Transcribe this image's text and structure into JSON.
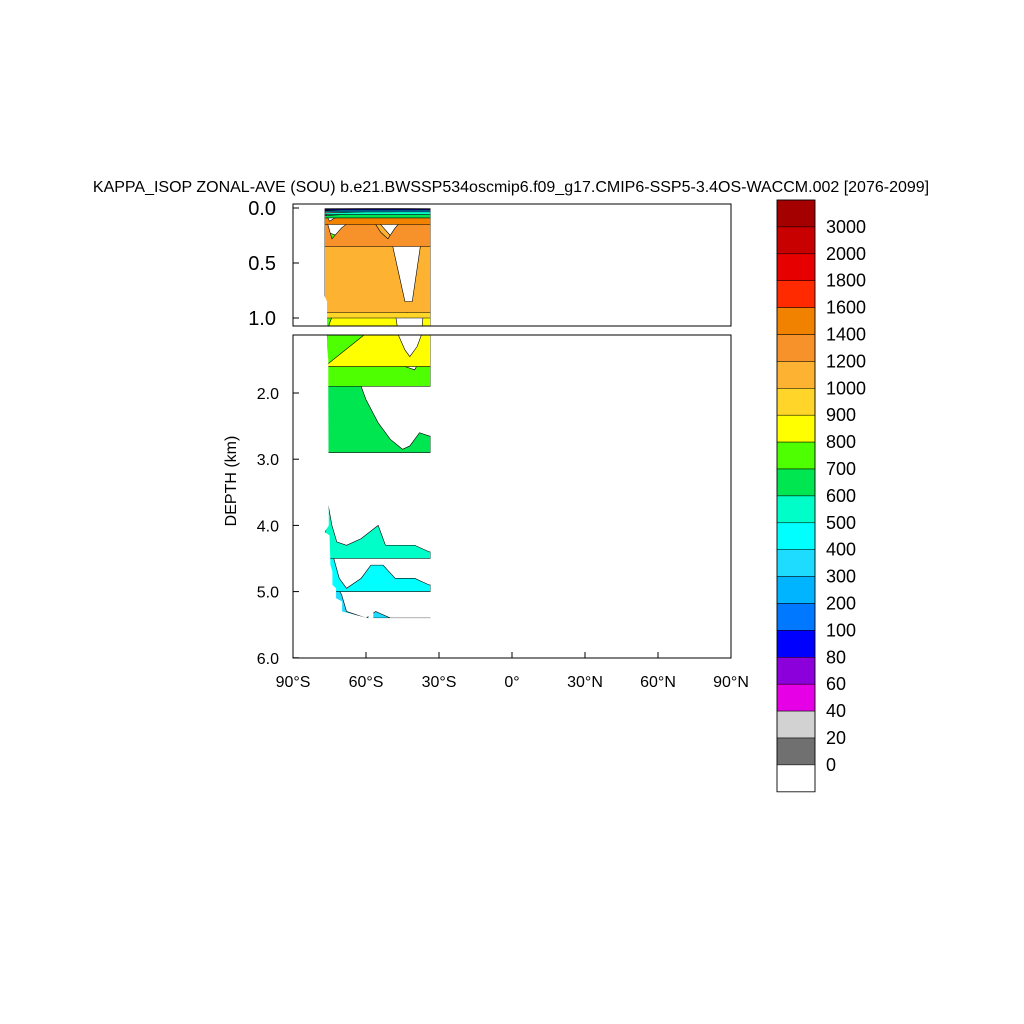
{
  "chart_data": {
    "type": "heatmap",
    "title": "KAPPA_ISOP ZONAL-AVE (SOU) b.e21.BWSSP534oscmip6.f09_g17.CMIP6-SSP5-3.4OS-WACCM.002 [2076-2099]",
    "ylabel": "DEPTH (km)",
    "xlabel": "",
    "xlim": [
      -90,
      90
    ],
    "ylim_upper_panel": [
      0.0,
      1.1
    ],
    "ylim_lower_panel": [
      1.1,
      6.0
    ],
    "xticks": [
      {
        "value": -90,
        "label": "90°S"
      },
      {
        "value": -60,
        "label": "60°S"
      },
      {
        "value": -30,
        "label": "30°S"
      },
      {
        "value": 0,
        "label": "0°"
      },
      {
        "value": 30,
        "label": "30°N"
      },
      {
        "value": 60,
        "label": "60°N"
      },
      {
        "value": 90,
        "label": "90°N"
      }
    ],
    "yticks_upper": [
      {
        "value": 0.0,
        "label": "0.0"
      },
      {
        "value": 0.5,
        "label": "0.5"
      },
      {
        "value": 1.0,
        "label": "1.0"
      }
    ],
    "yticks_lower": [
      {
        "value": 2.0,
        "label": "2.0"
      },
      {
        "value": 3.0,
        "label": "3.0"
      },
      {
        "value": 4.0,
        "label": "4.0"
      },
      {
        "value": 5.0,
        "label": "5.0"
      },
      {
        "value": 6.0,
        "label": "6.0"
      }
    ],
    "colorbar": {
      "labels": [
        "3000",
        "2000",
        "1800",
        "1600",
        "1400",
        "1200",
        "1000",
        "900",
        "800",
        "700",
        "600",
        "500",
        "400",
        "300",
        "200",
        "100",
        "80",
        "60",
        "40",
        "20",
        "0"
      ],
      "colors": [
        "#a50000",
        "#c80000",
        "#e60000",
        "#ff2a00",
        "#f08200",
        "#f7922b",
        "#fdb232",
        "#ffd52a",
        "#ffff00",
        "#4dff00",
        "#00e650",
        "#00ffc8",
        "#00ffff",
        "#1edcff",
        "#00b4ff",
        "#0078ff",
        "#0000ff",
        "#8c00dc",
        "#e600e6",
        "#d2d2d2",
        "#707070",
        "#ffffff"
      ]
    },
    "bands": [
      {
        "level": 400,
        "color": "#1edcff",
        "ub": 5.4,
        "profile": [
          [
            -77,
            4.1
          ],
          [
            -75,
            4.5
          ],
          [
            -73,
            4.85
          ],
          [
            -70,
            5.05
          ],
          [
            -68,
            5.3
          ],
          [
            -60,
            5.4
          ],
          [
            -56,
            5.3
          ],
          [
            -50,
            5.4
          ],
          [
            -34,
            5.4
          ]
        ]
      },
      {
        "level": 500,
        "color": "#00ffff",
        "ub": 5.0,
        "profile": [
          [
            -76,
            4.05
          ],
          [
            -74,
            4.4
          ],
          [
            -71,
            4.8
          ],
          [
            -68,
            4.95
          ],
          [
            -62,
            4.8
          ],
          [
            -58,
            4.6
          ],
          [
            -53,
            4.6
          ],
          [
            -48,
            4.8
          ],
          [
            -40,
            4.8
          ],
          [
            -34,
            4.9
          ]
        ]
      },
      {
        "level": 600,
        "color": "#00ffc8",
        "ub": 4.5,
        "profile": [
          [
            -76,
            3.6
          ],
          [
            -74,
            4.0
          ],
          [
            -72,
            4.25
          ],
          [
            -68,
            4.3
          ],
          [
            -62,
            4.2
          ],
          [
            -55,
            4.0
          ],
          [
            -52,
            4.3
          ],
          [
            -48,
            4.3
          ],
          [
            -40,
            4.3
          ],
          [
            -34,
            4.4
          ]
        ]
      },
      {
        "level": 700,
        "color": "#00e650",
        "ub": 2.9,
        "profile": [
          [
            -77,
            0.7
          ],
          [
            -76,
            0.8
          ],
          [
            -74,
            1.0
          ],
          [
            -71,
            1.0
          ],
          [
            -68,
            1.0
          ],
          [
            -66,
            1.4
          ],
          [
            -64,
            1.7
          ],
          [
            -60,
            2.1
          ],
          [
            -55,
            2.45
          ],
          [
            -50,
            2.7
          ],
          [
            -45,
            2.85
          ],
          [
            -42,
            2.8
          ],
          [
            -38,
            2.6
          ],
          [
            -34,
            2.65
          ]
        ]
      },
      {
        "level": 800,
        "color": "#4dff00",
        "ub": 1.9,
        "profile": [
          [
            -76,
            0.22
          ],
          [
            -72,
            0.25
          ],
          [
            -68,
            0.3
          ],
          [
            -62,
            0.4
          ],
          [
            -56,
            0.6
          ],
          [
            -52,
            0.9
          ],
          [
            -49,
            1.1
          ],
          [
            -47,
            1.4
          ],
          [
            -44,
            1.6
          ],
          [
            -40,
            1.65
          ],
          [
            -37,
            1.45
          ],
          [
            -35,
            1.2
          ],
          [
            -34,
            0.3
          ]
        ]
      },
      {
        "level": 900,
        "color": "#ffff00",
        "ub": 1.6,
        "profile": [
          [
            -60,
            0.15
          ],
          [
            -56,
            0.3
          ],
          [
            -52,
            0.55
          ],
          [
            -49,
            0.8
          ],
          [
            -47,
            1.1
          ],
          [
            -44,
            1.35
          ],
          [
            -42,
            1.45
          ],
          [
            -39,
            1.3
          ],
          [
            -37,
            1.1
          ],
          [
            -34,
            0.3
          ]
        ]
      },
      {
        "level": 1000,
        "color": "#ffd52a",
        "ub": 1.0,
        "profile": [
          [
            -77,
            0.1
          ],
          [
            -74,
            0.35
          ],
          [
            -70,
            0.25
          ],
          [
            -62,
            0.08
          ],
          [
            -58,
            0.15
          ],
          [
            -52,
            0.4
          ],
          [
            -49,
            0.65
          ],
          [
            -46,
            0.85
          ],
          [
            -43,
            0.95
          ],
          [
            -40,
            0.9
          ],
          [
            -38,
            0.6
          ],
          [
            -36,
            0.35
          ],
          [
            -34,
            0.1
          ]
        ]
      },
      {
        "level": 1200,
        "color": "#fdb232",
        "ub": 0.95,
        "profile": [
          [
            -77,
            0.08
          ],
          [
            -74,
            0.3
          ],
          [
            -70,
            0.2
          ],
          [
            -62,
            0.05
          ],
          [
            -56,
            0.1
          ],
          [
            -50,
            0.25
          ],
          [
            -47,
            0.55
          ],
          [
            -44,
            0.85
          ],
          [
            -41,
            0.85
          ],
          [
            -39,
            0.55
          ],
          [
            -37,
            0.25
          ],
          [
            -34,
            0.05
          ]
        ]
      },
      {
        "level": 1400,
        "color": "#f7922b",
        "ub": 0.35,
        "profile": [
          [
            -77,
            0.05
          ],
          [
            -74,
            0.28
          ],
          [
            -70,
            0.18
          ],
          [
            -64,
            0.08
          ],
          [
            -58,
            0.08
          ],
          [
            -54,
            0.22
          ],
          [
            -51,
            0.28
          ],
          [
            -48,
            0.18
          ],
          [
            -44,
            0.08
          ],
          [
            -39,
            0.05
          ],
          [
            -36,
            0.05
          ]
        ]
      },
      {
        "level": 1600,
        "color": "#f08200",
        "ub": 0.15,
        "profile": [
          [
            -77,
            0.03
          ],
          [
            -75,
            0.12
          ],
          [
            -72,
            0.08
          ],
          [
            -68,
            0.06
          ],
          [
            -60,
            0.04
          ],
          [
            -50,
            0.04
          ],
          [
            -40,
            0.03
          ],
          [
            -36,
            0.03
          ]
        ]
      }
    ],
    "surface_bands": [
      {
        "level": 600,
        "color": "#00e650",
        "ub": 0.09,
        "profile": [
          [
            -77,
            0.07
          ],
          [
            -70,
            0.06
          ],
          [
            -60,
            0.05
          ],
          [
            -50,
            0.05
          ],
          [
            -40,
            0.04
          ],
          [
            -33,
            0.05
          ]
        ]
      },
      {
        "level": 500,
        "color": "#00ffc8",
        "ub": 0.06,
        "profile": [
          [
            -77,
            0.045
          ],
          [
            -70,
            0.04
          ],
          [
            -60,
            0.035
          ],
          [
            -50,
            0.035
          ],
          [
            -40,
            0.03
          ],
          [
            -33,
            0.035
          ]
        ]
      },
      {
        "level": 200,
        "color": "#00b4ff",
        "ub": 0.035,
        "profile": [
          [
            -77,
            0.025
          ],
          [
            -70,
            0.02
          ],
          [
            -60,
            0.02
          ],
          [
            -50,
            0.02
          ],
          [
            -40,
            0.02
          ],
          [
            -33,
            0.02
          ]
        ]
      },
      {
        "level": 100,
        "color": "#0000ff",
        "ub": 0.02,
        "profile": [
          [
            -77,
            0.012
          ],
          [
            -60,
            0.01
          ],
          [
            -45,
            0.01
          ],
          [
            -33,
            0.012
          ]
        ]
      },
      {
        "level": 20,
        "color": "#707070",
        "ub": 0.01,
        "profile": [
          [
            -77,
            0.006
          ],
          [
            -60,
            0.005
          ],
          [
            -45,
            0.005
          ],
          [
            -33,
            0.006
          ]
        ]
      }
    ],
    "west_edge": [
      [
        0,
        -77
      ],
      [
        0.8,
        -77
      ],
      [
        0.85,
        -76
      ],
      [
        1.3,
        -76
      ],
      [
        1.5,
        -75.5
      ],
      [
        2.0,
        -75.5
      ],
      [
        4.0,
        -75.3
      ],
      [
        4.1,
        -77
      ],
      [
        4.15,
        -75
      ],
      [
        4.6,
        -74.6
      ],
      [
        4.7,
        -73.8
      ],
      [
        4.9,
        -73.8
      ],
      [
        4.95,
        -72.3
      ],
      [
        5.1,
        -72.3
      ],
      [
        5.15,
        -69.8
      ],
      [
        5.3,
        -69.8
      ],
      [
        5.4,
        -59.2
      ],
      [
        5.4,
        -58.4
      ],
      [
        5.3,
        -58.4
      ]
    ],
    "gap": [
      [
        -59,
        -57
      ],
      [
        5.25,
        5.4
      ]
    ],
    "east_edge": -33.5
  }
}
